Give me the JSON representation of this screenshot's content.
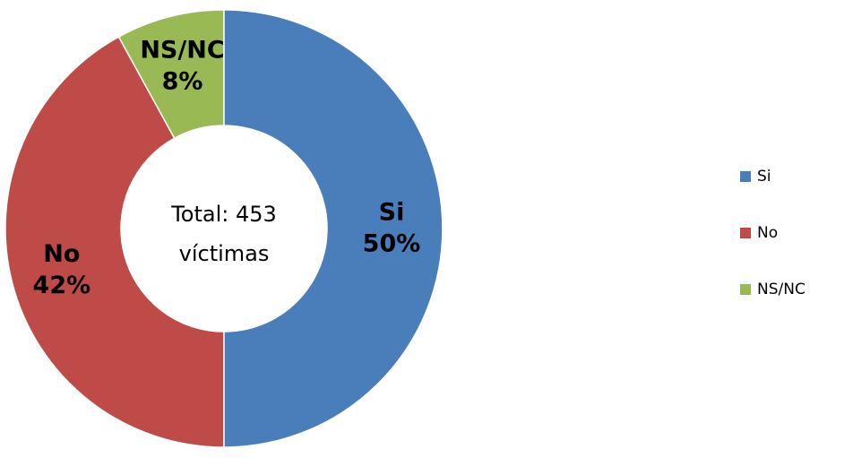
{
  "chart_data": {
    "type": "donut",
    "categories": [
      "Si",
      "No",
      "NS/NC"
    ],
    "values": [
      50,
      42,
      8
    ],
    "value_labels": [
      "50%",
      "42%",
      "8%"
    ],
    "colors": [
      "#4a7ebb",
      "#be4b48",
      "#98b954"
    ],
    "center_text": [
      "Total: 453",
      "víctimas"
    ],
    "legend": "right"
  }
}
